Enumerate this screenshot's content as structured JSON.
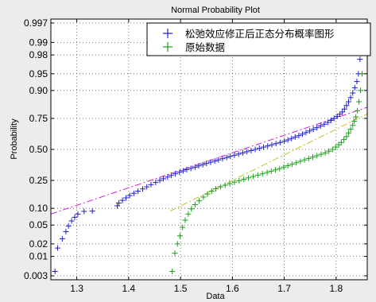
{
  "chart_data": {
    "type": "scatter",
    "title": "Normal Probability Plot",
    "xlabel": "Data",
    "ylabel": "Probability",
    "xlim": [
      1.25,
      1.86
    ],
    "x_ticks": [
      1.3,
      1.4,
      1.5,
      1.6,
      1.7,
      1.8
    ],
    "x_tick_labels": [
      "1.3",
      "1.4",
      "1.5",
      "1.6",
      "1.7",
      "1.8"
    ],
    "y_scale": "normal-probability",
    "y_ticks": [
      0.003,
      0.01,
      0.02,
      0.05,
      0.1,
      0.25,
      0.5,
      0.75,
      0.9,
      0.95,
      0.98,
      0.99,
      0.997
    ],
    "y_tick_labels": [
      "0.003",
      "0.01",
      "0.02",
      "0.05",
      "0.10",
      "0.25",
      "0.50",
      "0.75",
      "0.90",
      "0.95",
      "0.98",
      "0.99",
      "0.997"
    ],
    "grid": true,
    "legend_position": "top-right",
    "series": [
      {
        "name": "松弛效应修正后正态分布概率图形",
        "color": "#2020c8",
        "marker": "plus",
        "fit_line": {
          "x": [
            1.25,
            1.86
          ],
          "y": [
            0.08,
            0.82
          ],
          "color": "#d020d0",
          "style": "dash-dot"
        },
        "x": [
          1.258,
          1.263,
          1.272,
          1.279,
          1.284,
          1.29,
          1.296,
          1.302,
          1.314,
          1.33,
          1.378,
          1.381,
          1.388,
          1.395,
          1.402,
          1.41,
          1.418,
          1.427,
          1.435,
          1.443,
          1.452,
          1.46,
          1.467,
          1.475,
          1.482,
          1.49,
          1.498,
          1.505,
          1.512,
          1.52,
          1.528,
          1.535,
          1.543,
          1.55,
          1.558,
          1.566,
          1.573,
          1.581,
          1.589,
          1.596,
          1.604,
          1.612,
          1.62,
          1.628,
          1.636,
          1.644,
          1.652,
          1.66,
          1.668,
          1.676,
          1.684,
          1.692,
          1.7,
          1.707,
          1.714,
          1.721,
          1.728,
          1.735,
          1.742,
          1.749,
          1.756,
          1.763,
          1.77,
          1.777,
          1.784,
          1.79,
          1.796,
          1.802,
          1.807,
          1.812,
          1.816,
          1.82,
          1.824,
          1.828,
          1.832,
          1.836,
          1.84,
          1.843,
          1.846
        ],
        "y": [
          0.004,
          0.016,
          0.026,
          0.037,
          0.048,
          0.06,
          0.07,
          0.08,
          0.089,
          0.09,
          0.11,
          0.122,
          0.134,
          0.146,
          0.158,
          0.17,
          0.182,
          0.195,
          0.208,
          0.222,
          0.236,
          0.25,
          0.262,
          0.274,
          0.286,
          0.298,
          0.31,
          0.32,
          0.33,
          0.34,
          0.35,
          0.36,
          0.37,
          0.38,
          0.39,
          0.4,
          0.41,
          0.42,
          0.43,
          0.44,
          0.45,
          0.46,
          0.47,
          0.48,
          0.49,
          0.5,
          0.51,
          0.52,
          0.53,
          0.54,
          0.55,
          0.56,
          0.57,
          0.582,
          0.594,
          0.606,
          0.618,
          0.63,
          0.643,
          0.656,
          0.669,
          0.682,
          0.695,
          0.708,
          0.722,
          0.736,
          0.75,
          0.764,
          0.778,
          0.792,
          0.81,
          0.83,
          0.85,
          0.87,
          0.89,
          0.91,
          0.93,
          0.95,
          0.975
        ]
      },
      {
        "name": "原始数据",
        "color": "#18a018",
        "marker": "plus",
        "fit_line": {
          "x": [
            1.48,
            1.86
          ],
          "y": [
            0.09,
            0.78
          ],
          "color": "#c8c020",
          "style": "dash-dot"
        },
        "x": [
          1.484,
          1.489,
          1.494,
          1.499,
          1.504,
          1.509,
          1.515,
          1.521,
          1.528,
          1.536,
          1.544,
          1.552,
          1.56,
          1.568,
          1.577,
          1.586,
          1.595,
          1.604,
          1.613,
          1.622,
          1.631,
          1.64,
          1.649,
          1.658,
          1.667,
          1.675,
          1.683,
          1.691,
          1.699,
          1.707,
          1.715,
          1.723,
          1.731,
          1.739,
          1.747,
          1.755,
          1.763,
          1.771,
          1.779,
          1.786,
          1.793,
          1.799,
          1.805,
          1.81,
          1.815,
          1.82,
          1.824,
          1.828,
          1.832,
          1.835,
          1.838,
          1.841,
          1.844,
          1.847,
          1.85
        ],
        "y": [
          0.004,
          0.012,
          0.02,
          0.03,
          0.045,
          0.062,
          0.08,
          0.098,
          0.115,
          0.132,
          0.15,
          0.166,
          0.182,
          0.196,
          0.208,
          0.218,
          0.228,
          0.238,
          0.248,
          0.258,
          0.268,
          0.278,
          0.288,
          0.298,
          0.308,
          0.318,
          0.328,
          0.338,
          0.35,
          0.362,
          0.374,
          0.386,
          0.398,
          0.41,
          0.422,
          0.434,
          0.446,
          0.458,
          0.47,
          0.485,
          0.5,
          0.52,
          0.54,
          0.56,
          0.585,
          0.61,
          0.64,
          0.67,
          0.7,
          0.73,
          0.76,
          0.8,
          0.85,
          0.9,
          0.95
        ]
      }
    ]
  }
}
